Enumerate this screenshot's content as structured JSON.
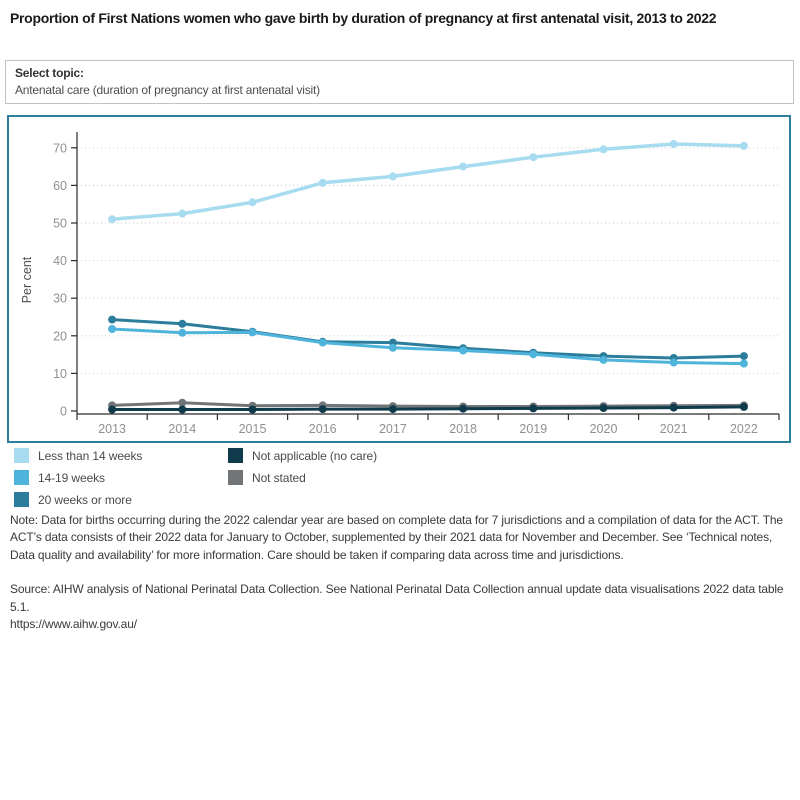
{
  "page": {
    "title": "Proportion of First Nations women who gave birth by duration of pregnancy at first antenatal visit, 2013 to 2022"
  },
  "topic_selector": {
    "label": "Select topic:",
    "selected": "Antenatal care (duration of pregnancy at first antenatal visit)"
  },
  "chart_data": {
    "type": "line",
    "title": "",
    "xlabel": "",
    "ylabel": "Per cent",
    "ylim": [
      0,
      73
    ],
    "yticks": [
      0,
      10,
      20,
      30,
      40,
      50,
      60,
      70
    ],
    "grid": "horizontal-dotted",
    "legend_position": "below-left-two-columns",
    "categories": [
      "2013",
      "2014",
      "2015",
      "2016",
      "2017",
      "2018",
      "2019",
      "2020",
      "2021",
      "2022"
    ],
    "series": [
      {
        "name": "Less than 14 weeks",
        "color": "#A6DBF0",
        "column": 1,
        "values": [
          51.0,
          52.5,
          55.5,
          60.7,
          62.4,
          65.0,
          67.5,
          69.6,
          71.0,
          70.5
        ]
      },
      {
        "name": "14-19 weeks",
        "color": "#4FB4DB",
        "column": 1,
        "values": [
          21.8,
          20.8,
          20.9,
          18.2,
          16.8,
          16.1,
          15.1,
          13.6,
          12.9,
          12.6
        ]
      },
      {
        "name": "20 weeks or more",
        "color": "#2C7D9B",
        "column": 1,
        "values": [
          24.3,
          23.2,
          21.1,
          18.4,
          18.2,
          16.7,
          15.5,
          14.6,
          14.1,
          14.6
        ]
      },
      {
        "name": "Not applicable (no care)",
        "color": "#0F3B4C",
        "column": 2,
        "values": [
          0.4,
          0.4,
          0.4,
          0.5,
          0.5,
          0.6,
          0.7,
          0.8,
          0.9,
          1.1
        ]
      },
      {
        "name": "Not stated",
        "color": "#717578",
        "column": 2,
        "values": [
          1.5,
          2.2,
          1.4,
          1.5,
          1.3,
          1.2,
          1.2,
          1.3,
          1.4,
          1.5
        ]
      }
    ]
  },
  "notes": {
    "note": "Note: Data for births occurring during the 2022 calendar year are based on complete data for 7 jurisdictions and a compilation of data for the ACT. The ACT’s data consists of their 2022 data for January to October, supplemented by their 2021 data for November and December. See ‘Technical notes, Data quality and availability’ for more information. Care should be taken if comparing data across time and jurisdictions.",
    "source": "Source: AIHW analysis of National Perinatal Data Collection. See National Perinatal Data Collection annual update data visualisations 2022 data table 5.1.",
    "url": "https://www.aihw.gov.au/"
  },
  "colors": {
    "panel_border": "#2E7F9C",
    "gridline": "#d2d2d2",
    "axis": "#2b2b2b",
    "tick_label": "#8e9091"
  }
}
